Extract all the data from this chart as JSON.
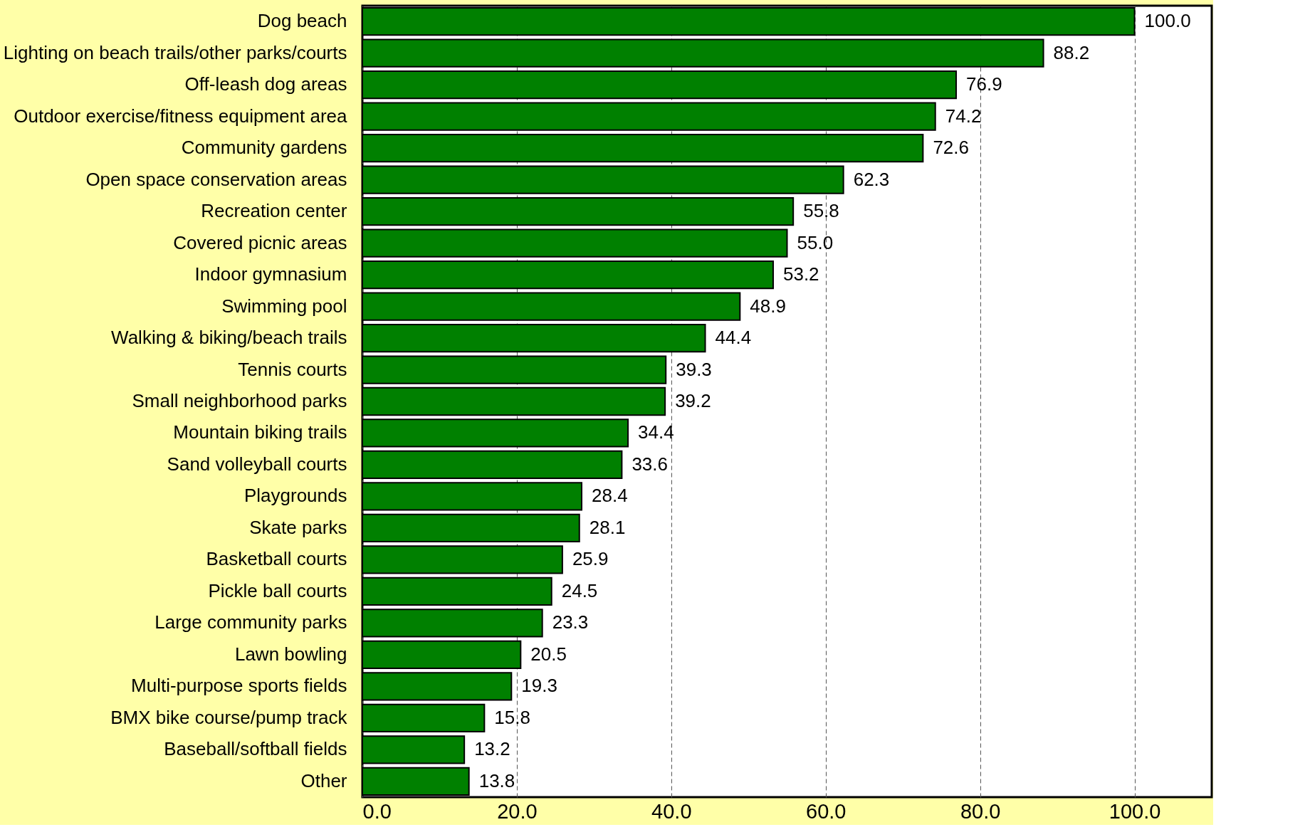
{
  "chart_data": {
    "type": "bar",
    "orientation": "horizontal",
    "categories": [
      "Dog beach",
      "Lighting on beach trails/other parks/courts",
      "Off-leash dog areas",
      "Outdoor exercise/fitness equipment area",
      "Community gardens",
      "Open space conservation areas",
      "Recreation center",
      "Covered picnic areas",
      "Indoor gymnasium",
      "Swimming pool",
      "Walking & biking/beach trails",
      "Tennis courts",
      "Small neighborhood parks",
      "Mountain biking trails",
      "Sand volleyball courts",
      "Playgrounds",
      "Skate parks",
      "Basketball courts",
      "Pickle ball courts",
      "Large community parks",
      "Lawn bowling",
      "Multi-purpose sports fields",
      "BMX bike course/pump track",
      "Baseball/softball fields",
      "Other"
    ],
    "values": [
      100.0,
      88.2,
      76.9,
      74.2,
      72.6,
      62.3,
      55.8,
      55.0,
      53.2,
      48.9,
      44.4,
      39.3,
      39.2,
      34.4,
      33.6,
      28.4,
      28.1,
      25.9,
      24.5,
      23.3,
      20.5,
      19.3,
      15.8,
      13.2,
      13.8
    ],
    "value_labels": [
      "100.0",
      "88.2",
      "76.9",
      "74.2",
      "72.6",
      "62.3",
      "55.8",
      "55.0",
      "53.2",
      "48.9",
      "44.4",
      "39.3",
      "39.2",
      "34.4",
      "33.6",
      "28.4",
      "28.1",
      "25.9",
      "24.5",
      "23.3",
      "20.5",
      "19.3",
      "15.8",
      "13.2",
      "13.8"
    ],
    "color": "#008000",
    "xlim": [
      0,
      110
    ],
    "xticks": [
      {
        "value": 0,
        "label": "0.0"
      },
      {
        "value": 20,
        "label": "20.0"
      },
      {
        "value": 40,
        "label": "40.0"
      },
      {
        "value": 60,
        "label": "60.0"
      },
      {
        "value": 80,
        "label": "80.0"
      },
      {
        "value": 100,
        "label": "100.0"
      }
    ],
    "grid": "x"
  }
}
